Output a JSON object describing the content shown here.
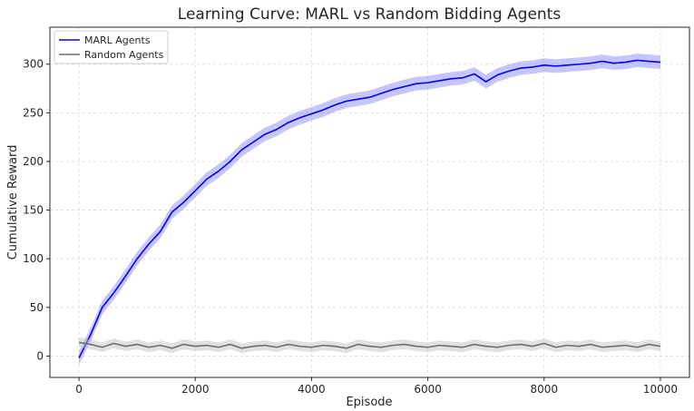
{
  "chart_data": {
    "type": "line",
    "title": "Learning Curve: MARL vs Random Bidding Agents",
    "xlabel": "Episode",
    "ylabel": "Cumulative Reward",
    "xlim": [
      -500,
      10500
    ],
    "ylim": [
      -22,
      338
    ],
    "xticks": [
      0,
      2000,
      4000,
      6000,
      8000,
      10000
    ],
    "xtick_labels": [
      "0",
      "2000",
      "4000",
      "6000",
      "8000",
      "10000"
    ],
    "yticks": [
      0,
      50,
      100,
      150,
      200,
      250,
      300
    ],
    "ytick_labels": [
      "0",
      "50",
      "100",
      "150",
      "200",
      "250",
      "300"
    ],
    "grid": true,
    "legend_position": "top-left",
    "series": [
      {
        "name": "MARL Agents",
        "color": "#0000ff",
        "band_color": "#8080ff",
        "band_halfwidth": 7,
        "x": [
          0,
          200,
          400,
          600,
          800,
          1000,
          1200,
          1400,
          1600,
          1800,
          2000,
          2200,
          2400,
          2600,
          2800,
          3000,
          3200,
          3400,
          3600,
          3800,
          4000,
          4200,
          4400,
          4600,
          4800,
          5000,
          5200,
          5400,
          5600,
          5800,
          6000,
          6200,
          6400,
          6600,
          6800,
          7000,
          7200,
          7400,
          7600,
          7800,
          8000,
          8200,
          8400,
          8600,
          8800,
          9000,
          9200,
          9400,
          9600,
          9800,
          10000
        ],
        "y": [
          -2,
          22,
          50,
          65,
          82,
          100,
          115,
          128,
          148,
          158,
          170,
          182,
          190,
          200,
          212,
          220,
          228,
          233,
          240,
          245,
          249,
          253,
          258,
          262,
          264,
          266,
          270,
          274,
          277,
          280,
          281,
          283,
          285,
          286,
          290,
          282,
          289,
          293,
          296,
          297,
          299,
          298,
          299,
          300,
          301,
          303,
          301,
          302,
          304,
          303,
          302
        ]
      },
      {
        "name": "Random Agents",
        "color": "#6e6e6e",
        "band_color": "#bdbdbd",
        "band_halfwidth": 5,
        "x": [
          0,
          200,
          400,
          600,
          800,
          1000,
          1200,
          1400,
          1600,
          1800,
          2000,
          2200,
          2400,
          2600,
          2800,
          3000,
          3200,
          3400,
          3600,
          3800,
          4000,
          4200,
          4400,
          4600,
          4800,
          5000,
          5200,
          5400,
          5600,
          5800,
          6000,
          6200,
          6400,
          6600,
          6800,
          7000,
          7200,
          7400,
          7600,
          7800,
          8000,
          8200,
          8400,
          8600,
          8800,
          9000,
          9200,
          9400,
          9600,
          9800,
          10000
        ],
        "y": [
          14,
          12,
          9,
          13,
          10,
          12,
          9,
          11,
          8,
          12,
          10,
          11,
          9,
          12,
          8,
          10,
          11,
          9,
          12,
          10,
          9,
          11,
          10,
          8,
          12,
          10,
          9,
          11,
          12,
          10,
          9,
          11,
          10,
          9,
          12,
          10,
          9,
          11,
          12,
          10,
          13,
          9,
          11,
          10,
          12,
          9,
          10,
          11,
          9,
          12,
          10
        ]
      }
    ]
  }
}
